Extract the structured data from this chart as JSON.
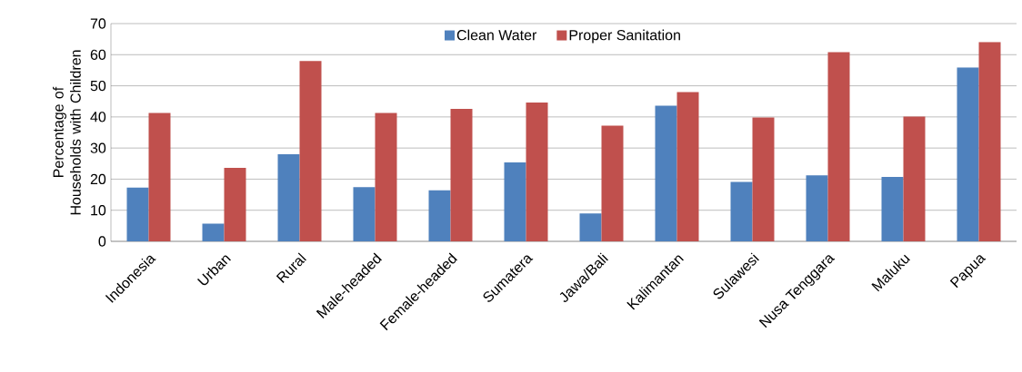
{
  "chart_data": {
    "type": "bar",
    "ylabel": "Percentage of Households with Children",
    "categories": [
      "Indonesia",
      "Urban",
      "Rural",
      "Male-headed",
      "Female-headed",
      "Sumatera",
      "Jawa/Bali",
      "Kalimantan",
      "Sulawesi",
      "Nusa Tenggara",
      "Maluku",
      "Papua"
    ],
    "series": [
      {
        "name": "Clean Water",
        "color": "#4f81bd",
        "values": [
          17.3,
          5.7,
          28.0,
          17.4,
          16.4,
          25.4,
          9.0,
          43.6,
          19.1,
          21.2,
          20.7,
          55.9
        ]
      },
      {
        "name": "Proper Sanitation",
        "color": "#c0504d",
        "values": [
          41.3,
          23.6,
          58.0,
          41.3,
          42.6,
          44.6,
          37.2,
          48.0,
          39.8,
          60.8,
          40.1,
          64.1
        ]
      }
    ],
    "ylim": [
      0,
      70
    ],
    "yticks": [
      0,
      10,
      20,
      30,
      40,
      50,
      60,
      70
    ],
    "grid": "y",
    "legend": "top"
  }
}
